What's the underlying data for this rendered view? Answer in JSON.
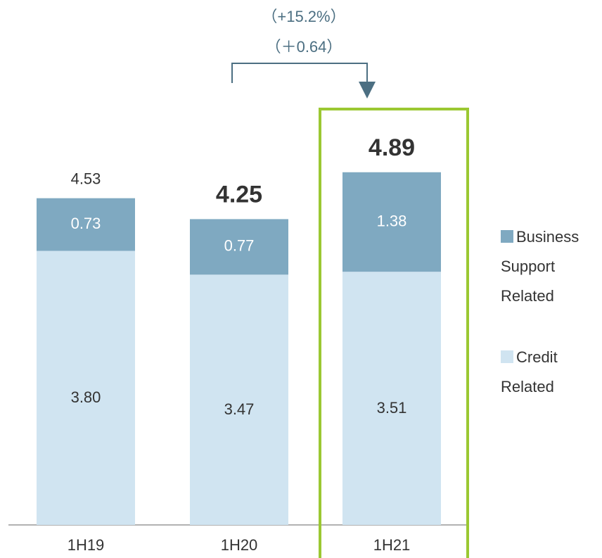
{
  "chart_data": {
    "type": "stacked_bar",
    "categories": [
      "1H19",
      "1H20",
      "1H21"
    ],
    "series": [
      {
        "name": "Credit Related",
        "color": "#d0e4f1",
        "values": [
          3.8,
          3.47,
          3.51
        ],
        "value_labels": [
          "3.80",
          "3.47",
          "3.51"
        ]
      },
      {
        "name": "Business Support Related",
        "color": "#7fa9c1",
        "values": [
          0.73,
          0.77,
          1.38
        ],
        "value_labels": [
          "0.73",
          "0.77",
          "1.38"
        ]
      }
    ],
    "totals": [
      4.53,
      4.25,
      4.89
    ],
    "annotations": [
      "（+15.2%）",
      "（＋0.64）"
    ],
    "highlight_color": "#9bc832"
  }
}
